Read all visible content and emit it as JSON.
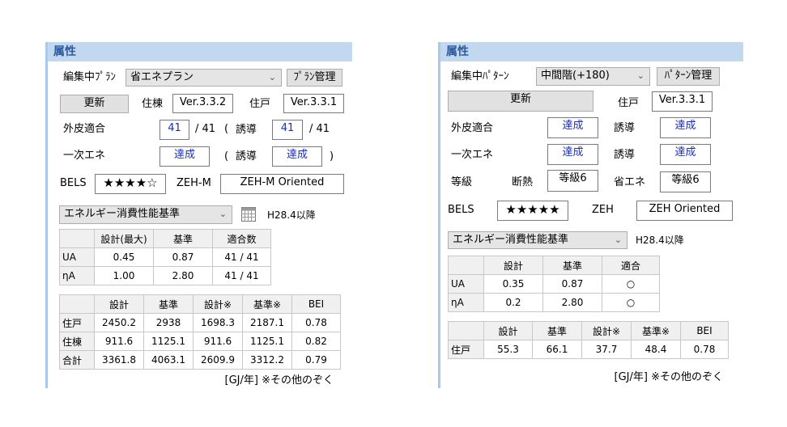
{
  "left": {
    "title": "属性",
    "plan_label": "編集中ﾌﾟﾗﾝ",
    "plan_value": "省エネプラン",
    "plan_manage": "ﾌﾟﾗﾝ管理",
    "update": "更新",
    "jutou_label": "住棟",
    "jutou_ver": "Ver.3.3.2",
    "juko_label": "住戸",
    "juko_ver": "Ver.3.3.1",
    "gaihi_label": "外皮適合",
    "gaihi_value": "41",
    "gaihi_total": "/ 41",
    "paren_open": "(",
    "yudo_label": "誘導",
    "gaihi_yudo_value": "41",
    "gaihi_yudo_total": "/ 41",
    "ichiji_label": "一次エネ",
    "ichiji_value": "達成",
    "ichiji_yudo_value": "達成",
    "paren_close": ")",
    "bels_label": "BELS",
    "bels_stars": "★★★★☆",
    "bels_rating": 4,
    "zeh_label": "ZEH-M",
    "zeh_value": "ZEH-M Oriented",
    "standard_value": "エネルギー消費性能基準",
    "standard_date": "H28.4以降",
    "table1": {
      "headers": [
        "",
        "設計(最大)",
        "基準",
        "適合数"
      ],
      "rows": [
        [
          "UA",
          "0.45",
          "0.87",
          "41 / 41"
        ],
        [
          "ηA",
          "1.00",
          "2.80",
          "41 / 41"
        ]
      ]
    },
    "table2": {
      "headers": [
        "",
        "設計",
        "基準",
        "設計※",
        "基準※",
        "BEI"
      ],
      "rows": [
        [
          "住戸",
          "2450.2",
          "2938",
          "1698.3",
          "2187.1",
          "0.78"
        ],
        [
          "住棟",
          "911.6",
          "1125.1",
          "911.6",
          "1125.1",
          "0.82"
        ],
        [
          "合計",
          "3361.8",
          "4063.1",
          "2609.9",
          "3312.2",
          "0.79"
        ]
      ]
    },
    "footer": "[GJ/年] ※その他のぞく"
  },
  "right": {
    "title": "属性",
    "pattern_label": "編集中ﾊﾟﾀｰﾝ",
    "pattern_value": "中間階(+180)",
    "pattern_manage": "ﾊﾟﾀｰﾝ管理",
    "update": "更新",
    "juko_label": "住戸",
    "juko_ver": "Ver.3.3.1",
    "gaihi_label": "外皮適合",
    "gaihi_value": "達成",
    "yudo_label": "誘導",
    "gaihi_yudo_value": "達成",
    "ichiji_label": "一次エネ",
    "ichiji_value": "達成",
    "ichiji_yudo_value": "達成",
    "grade_label": "等級",
    "dannetsu_label": "断熱",
    "dannetsu_value": "等級6",
    "shoene_label": "省エネ",
    "shoene_value": "等級6",
    "bels_label": "BELS",
    "bels_stars": "★★★★★",
    "bels_rating": 5,
    "zeh_label": "ZEH",
    "zeh_value": "ZEH Oriented",
    "standard_value": "エネルギー消費性能基準",
    "standard_date": "H28.4以降",
    "table1": {
      "headers": [
        "",
        "設計",
        "基準",
        "適合"
      ],
      "rows": [
        [
          "UA",
          "0.35",
          "0.87",
          "○"
        ],
        [
          "ηA",
          "0.2",
          "2.80",
          "○"
        ]
      ]
    },
    "table2": {
      "headers": [
        "",
        "設計",
        "基準",
        "設計※",
        "基準※",
        "BEI"
      ],
      "rows": [
        [
          "住戸",
          "55.3",
          "66.1",
          "37.7",
          "48.4",
          "0.78"
        ]
      ]
    },
    "footer": "[GJ/年] ※その他のぞく"
  },
  "colors": {
    "header_bg": "#c2d8ef",
    "header_text": "#2c5aa0",
    "value_blue": "#1a2fb8"
  }
}
